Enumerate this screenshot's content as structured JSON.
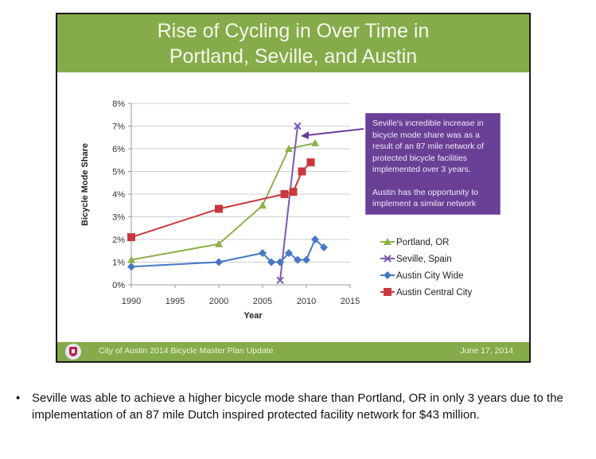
{
  "slide": {
    "title_line1": "Rise of Cycling in Over Time in",
    "title_line2": "Portland, Seville, and Austin",
    "footer_left": "City of Austin 2014 Bicycle Master Plan Update",
    "footer_right": "June 17, 2014",
    "footer_logo_icon": "city-seal-icon",
    "callout": {
      "paragraph1": "Seville's incredible increase in bicycle mode share was as a result of an 87 mile network of protected bicycle facilities implemented over 3 years.",
      "paragraph2": "Austin has the opportunity to implement a similar network"
    }
  },
  "bullet": {
    "icon": "•",
    "text": "Seville was able to achieve a higher bicycle mode share than Portland, OR in only 3 years due to the implementation of an 87 mile Dutch inspired protected facility network for $43 million."
  },
  "chart_data": {
    "type": "line",
    "title": "Rise of Cycling in Over Time in Portland, Seville, and Austin",
    "xlabel": "Year",
    "ylabel": "Bicycle Mode Share",
    "xlim": [
      1990,
      2015
    ],
    "ylim": [
      0,
      8
    ],
    "x_ticks": [
      1990,
      1995,
      2000,
      2005,
      2010,
      2015
    ],
    "y_ticks": [
      "0%",
      "1%",
      "2%",
      "3%",
      "4%",
      "5%",
      "6%",
      "7%",
      "8%"
    ],
    "grid": true,
    "legend_position": "right",
    "series": [
      {
        "name": "Portland, OR",
        "color": "#8db04a",
        "marker": "triangle",
        "x": [
          1990,
          2000,
          2005,
          2008,
          2011
        ],
        "y": [
          1.1,
          1.8,
          3.5,
          6.0,
          6.25
        ]
      },
      {
        "name": "Seville, Spain",
        "color": "#7e57b5",
        "marker": "x",
        "x": [
          2007,
          2009
        ],
        "y": [
          0.2,
          7.0
        ]
      },
      {
        "name": "Austin City Wide",
        "color": "#4677c2",
        "marker": "diamond",
        "x": [
          1990,
          2000,
          2005,
          2006,
          2007,
          2008,
          2009,
          2010,
          2011,
          2012
        ],
        "y": [
          0.8,
          1.0,
          1.4,
          1.0,
          1.0,
          1.4,
          1.1,
          1.1,
          2.0,
          1.65
        ]
      },
      {
        "name": "Austin Central City",
        "color": "#c9383c",
        "marker": "square",
        "x": [
          1990,
          2000,
          2007.5,
          2008.5,
          2009.5,
          2010.5
        ],
        "y": [
          2.1,
          3.35,
          4.0,
          4.1,
          5.0,
          5.4
        ]
      }
    ]
  }
}
